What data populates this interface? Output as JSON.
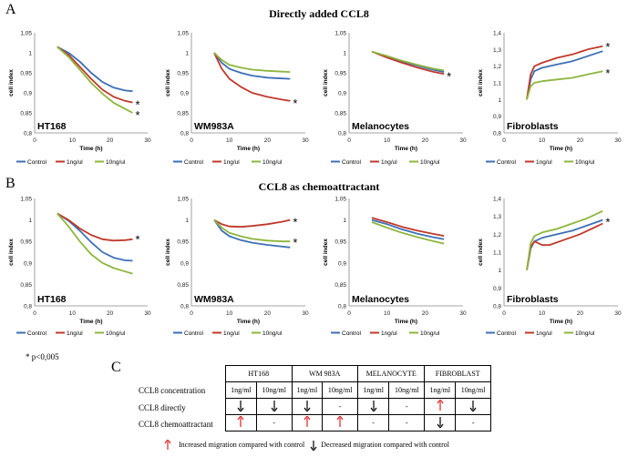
{
  "labels": {
    "panel_a": "A",
    "panel_b": "B",
    "panel_c": "C",
    "title_a": "Directly  added  CCL8",
    "title_b": "CCL8 as chemoattractant",
    "p_note": "* p<0,005"
  },
  "colors": {
    "control": "#3d6fb6",
    "1ng": "#c0392b",
    "10ng": "#8db63c",
    "up_arrow": "#e02020",
    "down_arrow": "#000000"
  },
  "chart_data": [
    {
      "type": "line",
      "row": "A",
      "panel_label": "HT168",
      "xlabel": "Time (h)",
      "ylabel": "cell index",
      "xlim": [
        0,
        30
      ],
      "ylim": [
        0.8,
        1.05
      ],
      "yticks": [
        "0,8",
        "0,85",
        "0,9",
        "0,95",
        "1",
        "1,05"
      ],
      "xticks": [
        "0",
        "10",
        "20",
        "30"
      ],
      "legend": [
        "Control",
        "1ng/ul",
        "10ng/ul"
      ],
      "series": [
        {
          "name": "Control",
          "color": "#3d6fb6",
          "x": [
            6,
            9,
            12,
            15,
            18,
            21,
            24,
            26
          ],
          "y": [
            1.015,
            1.0,
            0.978,
            0.95,
            0.927,
            0.913,
            0.906,
            0.904
          ]
        },
        {
          "name": "1ng/ul",
          "color": "#c0392b",
          "x": [
            6,
            9,
            12,
            15,
            18,
            21,
            24,
            26
          ],
          "y": [
            1.015,
            0.995,
            0.965,
            0.935,
            0.908,
            0.89,
            0.88,
            0.876
          ]
        },
        {
          "name": "10ng/ul",
          "color": "#8db63c",
          "x": [
            6,
            9,
            12,
            15,
            18,
            21,
            24,
            26
          ],
          "y": [
            1.015,
            0.99,
            0.958,
            0.925,
            0.898,
            0.875,
            0.86,
            0.85
          ]
        }
      ],
      "asterisks": [
        0.876,
        0.85
      ]
    },
    {
      "type": "line",
      "row": "A",
      "panel_label": "WM983A",
      "xlabel": "Time (h)",
      "ylabel": "cell index",
      "xlim": [
        0,
        30
      ],
      "ylim": [
        0.8,
        1.05
      ],
      "yticks": [
        "0,8",
        "0,85",
        "0,9",
        "0,95",
        "1",
        "1,05"
      ],
      "xticks": [
        "0",
        "10",
        "20",
        "30"
      ],
      "legend": [
        "Control",
        "1ng/ul",
        "10ng/ul"
      ],
      "series": [
        {
          "name": "Control",
          "color": "#3d6fb6",
          "x": [
            6,
            8,
            10,
            13,
            16,
            20,
            24,
            26
          ],
          "y": [
            1.0,
            0.975,
            0.96,
            0.95,
            0.943,
            0.938,
            0.936,
            0.935
          ]
        },
        {
          "name": "1ng/ul",
          "color": "#c0392b",
          "x": [
            6,
            8,
            10,
            13,
            16,
            20,
            24,
            26
          ],
          "y": [
            1.0,
            0.96,
            0.935,
            0.915,
            0.9,
            0.89,
            0.883,
            0.88
          ]
        },
        {
          "name": "10ng/ul",
          "color": "#8db63c",
          "x": [
            6,
            8,
            10,
            13,
            16,
            20,
            24,
            26
          ],
          "y": [
            1.0,
            0.982,
            0.97,
            0.963,
            0.958,
            0.955,
            0.953,
            0.952
          ]
        }
      ],
      "asterisks": [
        0.88
      ]
    },
    {
      "type": "line",
      "row": "A",
      "panel_label": "Melanocytes",
      "xlabel": "Time (h)",
      "ylabel": "cell index",
      "xlim": [
        0,
        30
      ],
      "ylim": [
        0.8,
        1.05
      ],
      "yticks": [
        "0,8",
        "0,85",
        "0,9",
        "0,95",
        "1",
        "1,05"
      ],
      "xticks": [
        "0",
        "10",
        "20",
        "30"
      ],
      "legend": [
        "Control",
        "1ng/ul",
        "10ng/ul"
      ],
      "series": [
        {
          "name": "Control",
          "color": "#3d6fb6",
          "x": [
            6,
            10,
            14,
            18,
            22,
            25
          ],
          "y": [
            1.003,
            0.99,
            0.978,
            0.968,
            0.958,
            0.952
          ]
        },
        {
          "name": "1ng/ul",
          "color": "#c0392b",
          "x": [
            6,
            10,
            14,
            18,
            22,
            25
          ],
          "y": [
            1.003,
            0.988,
            0.975,
            0.963,
            0.953,
            0.947
          ]
        },
        {
          "name": "10ng/ul",
          "color": "#8db63c",
          "x": [
            6,
            10,
            14,
            18,
            22,
            25
          ],
          "y": [
            1.003,
            0.992,
            0.98,
            0.97,
            0.961,
            0.956
          ]
        }
      ],
      "asterisks": [
        0.947
      ]
    },
    {
      "type": "line",
      "row": "A",
      "panel_label": "Fibroblasts",
      "xlabel": "Time (h)",
      "ylabel": "cell index",
      "xlim": [
        0,
        30
      ],
      "ylim": [
        0.8,
        1.4
      ],
      "yticks": [
        "0,8",
        "0,9",
        "1",
        "1,1",
        "1,2",
        "1,3",
        "1,4"
      ],
      "xticks": [
        "0",
        "10",
        "20",
        "30"
      ],
      "legend": [
        "Control",
        "1ng/ul",
        "10ng/ul"
      ],
      "series": [
        {
          "name": "Control",
          "color": "#3d6fb6",
          "x": [
            6,
            7,
            8,
            10,
            14,
            18,
            22,
            26
          ],
          "y": [
            1.0,
            1.12,
            1.17,
            1.19,
            1.21,
            1.23,
            1.26,
            1.29
          ]
        },
        {
          "name": "1ng/ul",
          "color": "#c0392b",
          "x": [
            6,
            7,
            8,
            10,
            14,
            18,
            22,
            26
          ],
          "y": [
            1.0,
            1.15,
            1.2,
            1.22,
            1.25,
            1.27,
            1.3,
            1.32
          ]
        },
        {
          "name": "10ng/ul",
          "color": "#8db63c",
          "x": [
            6,
            7,
            8,
            10,
            14,
            18,
            22,
            26
          ],
          "y": [
            1.0,
            1.08,
            1.1,
            1.11,
            1.12,
            1.13,
            1.15,
            1.17
          ]
        }
      ],
      "asterisks": [
        1.33,
        1.17
      ]
    },
    {
      "type": "line",
      "row": "B",
      "panel_label": "HT168",
      "xlabel": "Time (h)",
      "ylabel": "cell index",
      "xlim": [
        0,
        30
      ],
      "ylim": [
        0.8,
        1.05
      ],
      "yticks": [
        "0,8",
        "0,85",
        "0,9",
        "0,95",
        "1",
        "1,05"
      ],
      "xticks": [
        "0",
        "10",
        "20",
        "30"
      ],
      "legend": [
        "Control",
        "1ng/ul",
        "10ng/ul"
      ],
      "series": [
        {
          "name": "Control",
          "color": "#3d6fb6",
          "x": [
            6,
            9,
            12,
            15,
            18,
            21,
            24,
            26
          ],
          "y": [
            1.015,
            0.998,
            0.975,
            0.948,
            0.925,
            0.912,
            0.906,
            0.905
          ]
        },
        {
          "name": "1ng/ul",
          "color": "#c0392b",
          "x": [
            6,
            9,
            12,
            15,
            18,
            21,
            24,
            26
          ],
          "y": [
            1.015,
            1.0,
            0.98,
            0.965,
            0.955,
            0.952,
            0.953,
            0.955
          ]
        },
        {
          "name": "10ng/ul",
          "color": "#8db63c",
          "x": [
            6,
            9,
            12,
            15,
            18,
            21,
            24,
            26
          ],
          "y": [
            1.015,
            0.985,
            0.95,
            0.92,
            0.9,
            0.888,
            0.88,
            0.875
          ]
        }
      ],
      "asterisks": [
        0.96
      ]
    },
    {
      "type": "line",
      "row": "B",
      "panel_label": "WM983A",
      "xlabel": "Time (h)",
      "ylabel": "cell index",
      "xlim": [
        0,
        30
      ],
      "ylim": [
        0.8,
        1.05
      ],
      "yticks": [
        "0,8",
        "0,85",
        "0,9",
        "0,95",
        "1",
        "1,05"
      ],
      "xticks": [
        "0",
        "10",
        "20",
        "30"
      ],
      "legend": [
        "Control",
        "1ng/ul",
        "10ng/ul"
      ],
      "series": [
        {
          "name": "Control",
          "color": "#3d6fb6",
          "x": [
            6,
            8,
            10,
            13,
            16,
            20,
            24,
            26
          ],
          "y": [
            1.0,
            0.975,
            0.962,
            0.953,
            0.947,
            0.942,
            0.938,
            0.936
          ]
        },
        {
          "name": "1ng/ul",
          "color": "#c0392b",
          "x": [
            6,
            8,
            10,
            13,
            16,
            20,
            24,
            26
          ],
          "y": [
            1.0,
            0.99,
            0.985,
            0.984,
            0.986,
            0.99,
            0.996,
            1.0
          ]
        },
        {
          "name": "10ng/ul",
          "color": "#8db63c",
          "x": [
            6,
            8,
            10,
            13,
            16,
            20,
            24,
            26
          ],
          "y": [
            1.0,
            0.982,
            0.97,
            0.962,
            0.956,
            0.952,
            0.95,
            0.95
          ]
        }
      ],
      "asterisks": [
        1.0,
        0.953
      ]
    },
    {
      "type": "line",
      "row": "B",
      "panel_label": "Melanocytes",
      "xlabel": "Time (h)",
      "ylabel": "cell index",
      "xlim": [
        0,
        30
      ],
      "ylim": [
        0.8,
        1.05
      ],
      "yticks": [
        "0,8",
        "0,85",
        "0,9",
        "0,95",
        "1",
        "1,05"
      ],
      "xticks": [
        "0",
        "10",
        "20",
        "30"
      ],
      "legend": [
        "Control",
        "1ng/ul",
        "10ng/ul"
      ],
      "series": [
        {
          "name": "Control",
          "color": "#3d6fb6",
          "x": [
            6,
            10,
            14,
            18,
            22,
            25
          ],
          "y": [
            1.0,
            0.99,
            0.978,
            0.968,
            0.96,
            0.955
          ]
        },
        {
          "name": "1ng/ul",
          "color": "#c0392b",
          "x": [
            6,
            10,
            14,
            18,
            22,
            25
          ],
          "y": [
            1.005,
            0.995,
            0.984,
            0.975,
            0.968,
            0.963
          ]
        },
        {
          "name": "10ng/ul",
          "color": "#8db63c",
          "x": [
            6,
            10,
            14,
            18,
            22,
            25
          ],
          "y": [
            0.995,
            0.982,
            0.97,
            0.96,
            0.951,
            0.945
          ]
        }
      ],
      "asterisks": []
    },
    {
      "type": "line",
      "row": "B",
      "panel_label": "Fibroblasts",
      "xlabel": "Time (h)",
      "ylabel": "cell index",
      "xlim": [
        0,
        30
      ],
      "ylim": [
        0.8,
        1.4
      ],
      "yticks": [
        "0,8",
        "0,9",
        "1",
        "1,1",
        "1,2",
        "1,3",
        "1,4"
      ],
      "xticks": [
        "0",
        "10",
        "20",
        "30"
      ],
      "legend": [
        "Control",
        "1ng/ul",
        "10ng/ul"
      ],
      "series": [
        {
          "name": "Control",
          "color": "#3d6fb6",
          "x": [
            6,
            7,
            8,
            10,
            14,
            18,
            22,
            26
          ],
          "y": [
            1.0,
            1.12,
            1.16,
            1.18,
            1.2,
            1.22,
            1.25,
            1.28
          ]
        },
        {
          "name": "1ng/ul",
          "color": "#c0392b",
          "x": [
            6,
            7,
            8,
            10,
            12,
            16,
            20,
            24,
            26
          ],
          "y": [
            1.0,
            1.13,
            1.16,
            1.14,
            1.14,
            1.17,
            1.2,
            1.24,
            1.26
          ]
        },
        {
          "name": "10ng/ul",
          "color": "#8db63c",
          "x": [
            6,
            7,
            8,
            10,
            14,
            18,
            22,
            26
          ],
          "y": [
            1.0,
            1.15,
            1.19,
            1.21,
            1.23,
            1.26,
            1.29,
            1.33
          ]
        }
      ],
      "asterisks": [
        1.28
      ]
    }
  ],
  "summary_table": {
    "row_labels": [
      "CCL8 concentration",
      "CCL8 directly",
      "CCL8 chemoattractant"
    ],
    "groups": [
      "HT168",
      "WM 983A",
      "MELANOCYTE",
      "FIBROBLAST"
    ],
    "conc": [
      "1ng/ml",
      "10ng/ml",
      "1ng/ml",
      "10ng/ml",
      "1ng/ml",
      "10ng/ml",
      "1ng/ml",
      "10ng/ml"
    ],
    "directly": [
      "down",
      "down",
      "down",
      "-",
      "down",
      "-",
      "up",
      "down"
    ],
    "chemo": [
      "up",
      "-",
      "up",
      "up",
      "-",
      "-",
      "down",
      "-"
    ],
    "legend_up": "Increased migration  compared with control",
    "legend_down": "Decreased migration  compared with control"
  }
}
